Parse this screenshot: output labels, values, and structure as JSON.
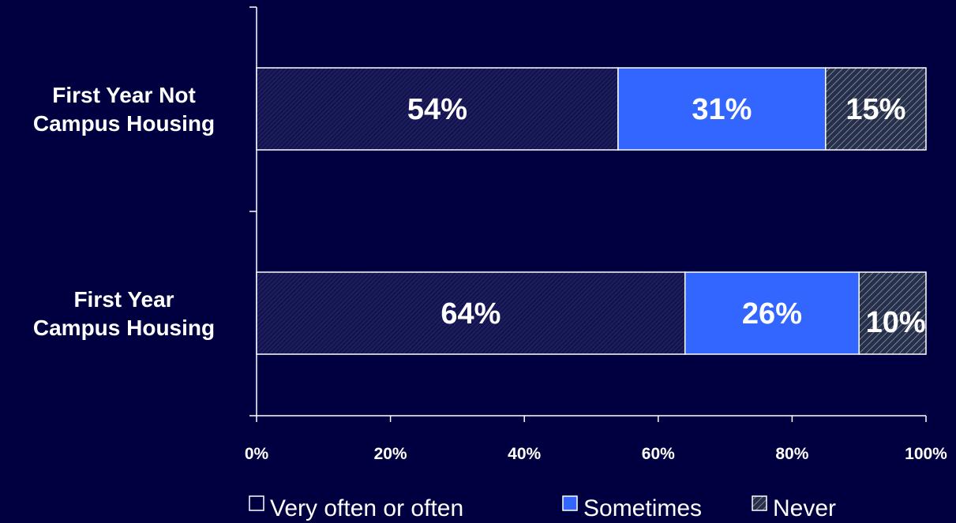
{
  "chart_data": {
    "type": "bar",
    "orientation": "horizontal",
    "stacked": true,
    "categories": [
      "First Year Not Campus Housing",
      "First Year Campus Housing"
    ],
    "category_lines": [
      [
        "First Year Not",
        "Campus Housing"
      ],
      [
        "First Year",
        "Campus Housing"
      ]
    ],
    "series": [
      {
        "name": "Very often or often",
        "values": [
          54,
          64
        ],
        "labels": [
          "54%",
          "64%"
        ],
        "color": "#1c1c60",
        "pattern": "dense-hatch"
      },
      {
        "name": "Sometimes",
        "values": [
          31,
          26
        ],
        "labels": [
          "31%",
          "26%"
        ],
        "color": "#3366ff",
        "pattern": "solid"
      },
      {
        "name": "Never",
        "values": [
          15,
          10
        ],
        "labels": [
          "15%",
          "10%"
        ],
        "color": "#2a3050",
        "pattern": "light-hatch"
      }
    ],
    "xlim": [
      0,
      100
    ],
    "xticks": [
      0,
      20,
      40,
      60,
      80,
      100
    ],
    "xtick_labels": [
      "0%",
      "20%",
      "40%",
      "60%",
      "80%",
      "100%"
    ],
    "legend": {
      "placement": "bottom",
      "markers": [
        "☐",
        "■",
        "▨"
      ],
      "labels": [
        "Very often or often",
        "Sometimes",
        "Never"
      ]
    },
    "grid": false
  }
}
